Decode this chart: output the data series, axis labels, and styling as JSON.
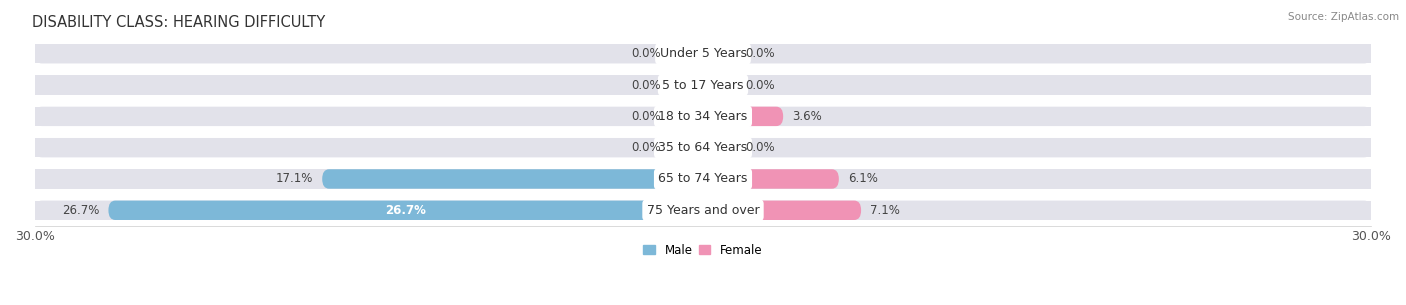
{
  "title": "DISABILITY CLASS: HEARING DIFFICULTY",
  "source": "Source: ZipAtlas.com",
  "categories": [
    "Under 5 Years",
    "5 to 17 Years",
    "18 to 34 Years",
    "35 to 64 Years",
    "65 to 74 Years",
    "75 Years and over"
  ],
  "male_values": [
    0.0,
    0.0,
    0.0,
    0.0,
    17.1,
    26.7
  ],
  "female_values": [
    0.0,
    0.0,
    3.6,
    0.0,
    6.1,
    7.1
  ],
  "xlim": 30.0,
  "male_color": "#7db8d8",
  "female_color": "#f093b5",
  "male_stub_color": "#a8cfe0",
  "female_stub_color": "#f5b8ce",
  "pill_bg_color": "#e2e2ea",
  "row_bg_even": "#ededf3",
  "row_bg_odd": "#e4e4ec",
  "bar_height": 0.62,
  "title_fontsize": 10.5,
  "label_fontsize": 8.5,
  "tick_fontsize": 9,
  "category_fontsize": 9,
  "value_label_color": "#444444",
  "value_label_inside_color": "#ffffff"
}
